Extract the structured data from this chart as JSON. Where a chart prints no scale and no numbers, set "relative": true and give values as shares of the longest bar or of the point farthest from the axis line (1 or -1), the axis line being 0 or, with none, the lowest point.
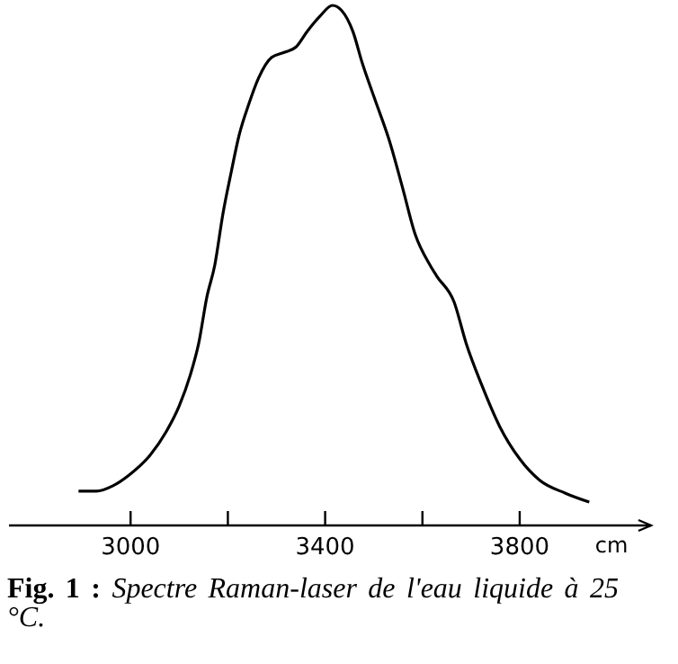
{
  "chart_data": {
    "type": "line",
    "relative": true,
    "xlabel": "cm",
    "xlim": [
      2750,
      4070
    ],
    "xticks": [
      3000,
      {
        "value": 3200,
        "label": null
      },
      3400,
      {
        "value": 3600,
        "label": null
      },
      3800
    ],
    "annotations": [
      "Fig. 1 :",
      "Spectre Raman-laser de l'eau liquide à 25 °C."
    ],
    "tick_labels": "x",
    "grid": false,
    "series": [
      {
        "color": "#000000",
        "x": [
          2893,
          2930,
          2963,
          2997,
          3040,
          3073,
          3100,
          3123,
          3140,
          3157,
          3173,
          3190,
          3207,
          3223,
          3243,
          3263,
          3290,
          3317,
          3340,
          3363,
          3390,
          3415,
          3434,
          3457,
          3476,
          3502,
          3532,
          3559,
          3585,
          3616,
          3629,
          3665,
          3690,
          3722,
          3759,
          3800,
          3841,
          3894,
          3943
        ],
        "values": [
          0.066,
          0.066,
          0.076,
          0.097,
          0.135,
          0.18,
          0.23,
          0.29,
          0.35,
          0.44,
          0.5,
          0.6,
          0.68,
          0.75,
          0.81,
          0.86,
          0.9,
          0.91,
          0.92,
          0.95,
          0.98,
          1,
          0.99,
          0.95,
          0.89,
          0.82,
          0.74,
          0.65,
          0.56,
          0.5,
          0.48,
          0.43,
          0.35,
          0.27,
          0.19,
          0.128,
          0.087,
          0.062,
          0.045
        ]
      }
    ]
  }
}
